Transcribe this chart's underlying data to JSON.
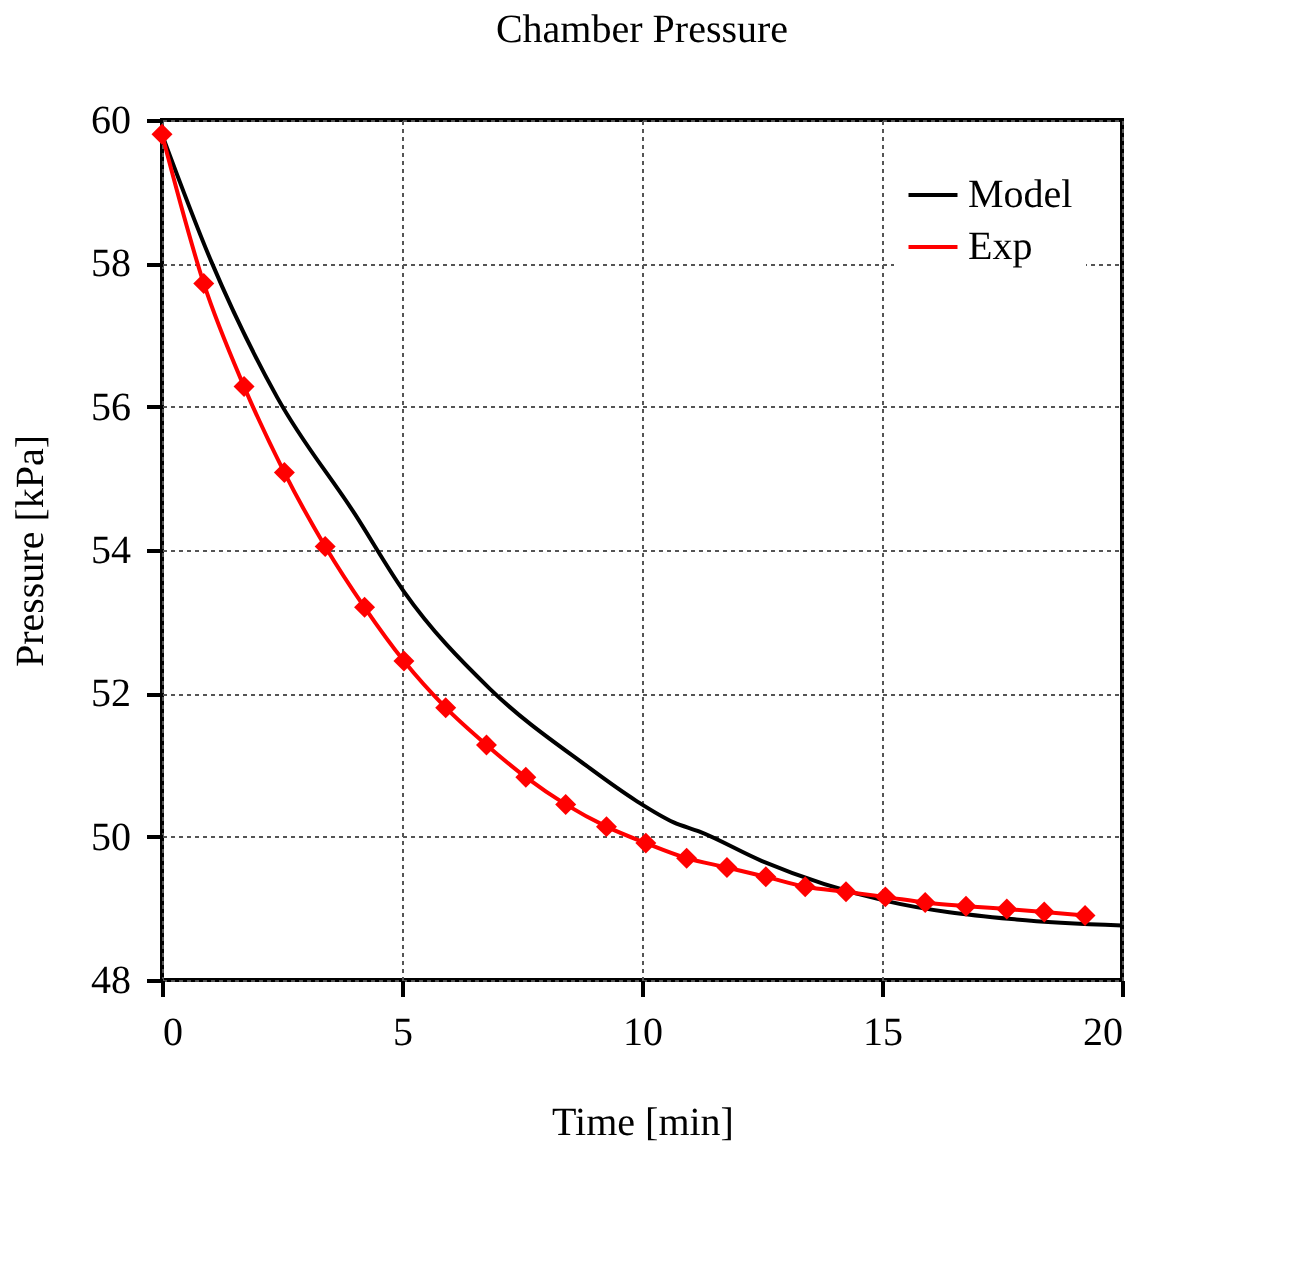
{
  "chart_data": {
    "type": "line",
    "title": "Chamber Pressure",
    "xlabel": "Time [min]",
    "ylabel": "Pressure [kPa]",
    "xlim": [
      0,
      20
    ],
    "xticks": [
      0,
      5,
      10,
      15,
      20
    ],
    "ylim": [
      48,
      60
    ],
    "yticks": [
      48,
      50,
      52,
      54,
      56,
      58,
      60
    ],
    "grid": true,
    "legend": "top right",
    "series": [
      {
        "name": "Model",
        "color": "#000000",
        "marker": "none",
        "x": [
          0,
          1.03,
          2.4,
          4.02,
          5.04,
          6.82,
          8.84,
          9.88,
          10.66,
          11.2,
          12.5,
          15.1,
          17.7,
          20
        ],
        "values": [
          59.8,
          58.02,
          56.13,
          54.5,
          53.42,
          52.07,
          50.99,
          50.5,
          50.2,
          50.07,
          49.66,
          49.1,
          48.85,
          48.76
        ]
      },
      {
        "name": "Exp",
        "color": "#ff0000",
        "marker": "diamond",
        "x": [
          0,
          0.87,
          1.71,
          2.55,
          3.4,
          4.22,
          5.04,
          5.91,
          6.76,
          7.58,
          8.41,
          9.26,
          10.08,
          10.93,
          11.77,
          12.58,
          13.4,
          14.25,
          15.07,
          15.9,
          16.75,
          17.6,
          18.38,
          19.23
        ],
        "values": [
          59.8,
          57.72,
          56.28,
          55.08,
          54.05,
          53.2,
          52.45,
          51.8,
          51.28,
          50.83,
          50.45,
          50.14,
          49.91,
          49.7,
          49.57,
          49.44,
          49.3,
          49.23,
          49.16,
          49.08,
          49.03,
          48.99,
          48.95,
          48.9
        ]
      }
    ]
  }
}
